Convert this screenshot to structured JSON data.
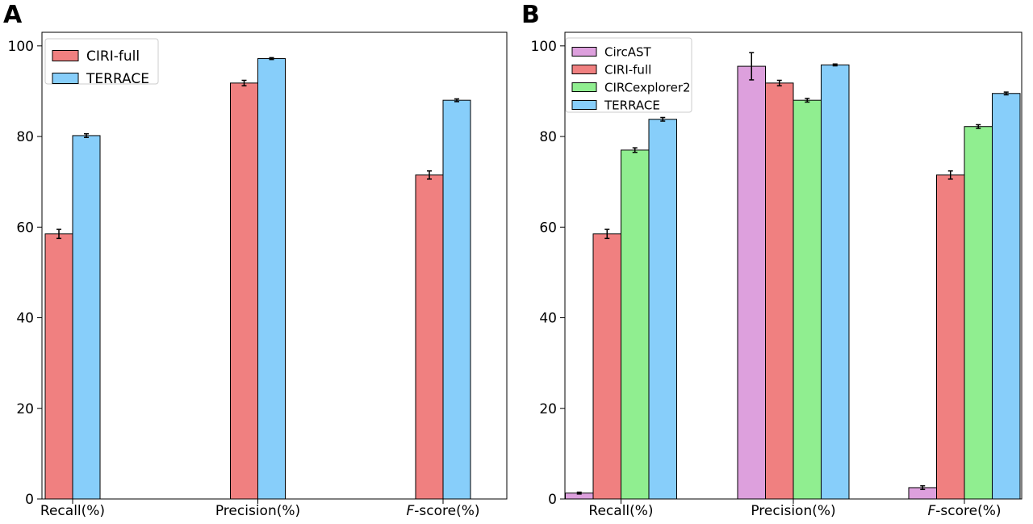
{
  "chart_data": [
    {
      "panel": "A",
      "type": "bar",
      "categories": [
        "Recall(%)",
        "Precision(%)",
        "F-score(%)"
      ],
      "italic_prefix": [
        "",
        "",
        "F"
      ],
      "ylim": [
        0,
        103
      ],
      "yticks": [
        0,
        20,
        40,
        60,
        80,
        100
      ],
      "legend_placement": "top-left",
      "series": [
        {
          "name": "CIRI-full",
          "color": "#F08080",
          "values": [
            58.5,
            91.8,
            71.5
          ],
          "errors": [
            1.0,
            0.6,
            0.9
          ]
        },
        {
          "name": "TERRACE",
          "color": "#87CEFA",
          "values": [
            80.2,
            97.2,
            88.0
          ],
          "errors": [
            0.4,
            0.2,
            0.3
          ]
        }
      ]
    },
    {
      "panel": "B",
      "type": "bar",
      "categories": [
        "Recall(%)",
        "Precision(%)",
        "F-score(%)"
      ],
      "italic_prefix": [
        "",
        "",
        "F"
      ],
      "ylim": [
        0,
        103
      ],
      "yticks": [
        0,
        20,
        40,
        60,
        80,
        100
      ],
      "legend_placement": "top-left",
      "series": [
        {
          "name": "CircAST",
          "color": "#DDA0DD",
          "values": [
            1.3,
            95.5,
            2.5
          ],
          "errors": [
            0.2,
            3.0,
            0.4
          ]
        },
        {
          "name": "CIRI-full",
          "color": "#F08080",
          "values": [
            58.5,
            91.8,
            71.5
          ],
          "errors": [
            1.0,
            0.6,
            0.9
          ]
        },
        {
          "name": "CIRCexplorer2",
          "color": "#90EE90",
          "values": [
            77.0,
            88.0,
            82.2
          ],
          "errors": [
            0.5,
            0.4,
            0.4
          ]
        },
        {
          "name": "TERRACE",
          "color": "#87CEFA",
          "values": [
            83.8,
            95.8,
            89.5
          ],
          "errors": [
            0.4,
            0.2,
            0.3
          ]
        }
      ]
    }
  ]
}
